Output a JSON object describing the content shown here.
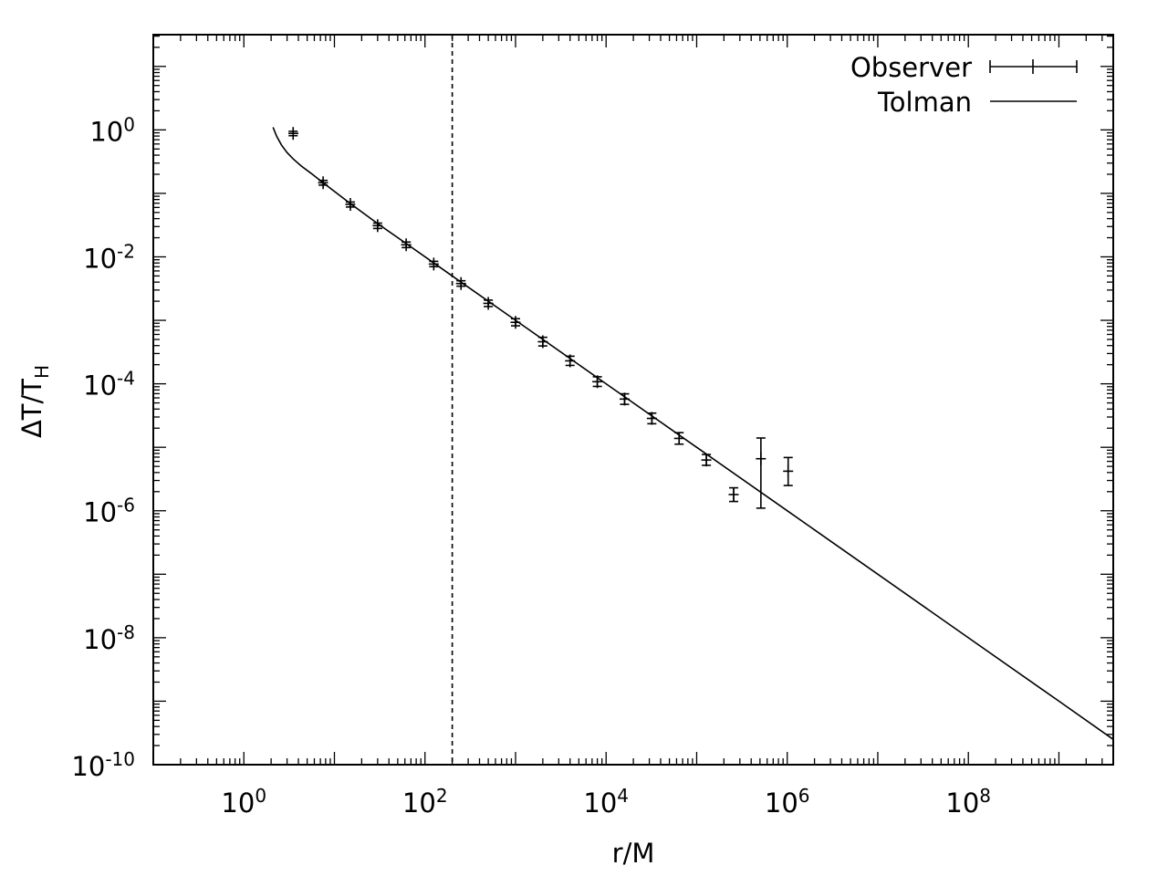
{
  "chart_data": {
    "type": "scatter",
    "title": "",
    "xlabel": "r/M",
    "ylabel": {
      "main": "ΔT/T",
      "sub": "H"
    },
    "xscale": "log",
    "yscale": "log",
    "xlim_log10": [
      -1,
      9.6
    ],
    "ylim_log10": [
      -10,
      1.5
    ],
    "x_ticks": [
      {
        "base": "10",
        "exp": "0",
        "value_log10": 0
      },
      {
        "base": "10",
        "exp": "2",
        "value_log10": 2
      },
      {
        "base": "10",
        "exp": "4",
        "value_log10": 4
      },
      {
        "base": "10",
        "exp": "6",
        "value_log10": 6
      },
      {
        "base": "10",
        "exp": "8",
        "value_log10": 8
      }
    ],
    "y_ticks": [
      {
        "base": "10",
        "exp": "0",
        "value_log10": 0
      },
      {
        "base": "10",
        "exp": "-2",
        "value_log10": -2
      },
      {
        "base": "10",
        "exp": "-4",
        "value_log10": -4
      },
      {
        "base": "10",
        "exp": "-6",
        "value_log10": -6
      },
      {
        "base": "10",
        "exp": "-8",
        "value_log10": -8
      },
      {
        "base": "10",
        "exp": "-10",
        "value_log10": -10
      }
    ],
    "vertical_marker_x": 200,
    "legend_position": "top-right",
    "series": [
      {
        "name": "Observer",
        "style": "errorbars",
        "points": [
          {
            "x": 3.5,
            "y": 0.88,
            "xerr": [
              3.1,
              4.0
            ],
            "yerr": [
              0.81,
              0.95
            ]
          },
          {
            "x": 7.5,
            "y": 0.147,
            "xerr": [
              6.6,
              8.5
            ],
            "yerr": [
              0.135,
              0.16
            ]
          },
          {
            "x": 15,
            "y": 0.067,
            "xerr": [
              13.2,
              17.0
            ],
            "yerr": [
              0.061,
              0.073
            ]
          },
          {
            "x": 30,
            "y": 0.031,
            "xerr": [
              26.4,
              34.0
            ],
            "yerr": [
              0.028,
              0.034
            ]
          },
          {
            "x": 62,
            "y": 0.0155,
            "xerr": [
              54.5,
              70.5
            ],
            "yerr": [
              0.014,
              0.0171
            ]
          },
          {
            "x": 125,
            "y": 0.0077,
            "xerr": [
              110,
              142
            ],
            "yerr": [
              0.007,
              0.0085
            ]
          },
          {
            "x": 250,
            "y": 0.0038,
            "xerr": [
              220,
              284
            ],
            "yerr": [
              0.00345,
              0.0042
            ]
          },
          {
            "x": 500,
            "y": 0.00185,
            "xerr": [
              440,
              568
            ],
            "yerr": [
              0.00165,
              0.00208
            ]
          },
          {
            "x": 1000,
            "y": 0.00093,
            "xerr": [
              880,
              1136
            ],
            "yerr": [
              0.00082,
              0.00106
            ]
          },
          {
            "x": 2000,
            "y": 0.00046,
            "xerr": [
              1760,
              2272
            ],
            "yerr": [
              0.000395,
              0.00054
            ]
          },
          {
            "x": 4000,
            "y": 0.00023,
            "xerr": [
              3520,
              4544
            ],
            "yerr": [
              0.000195,
              0.000272
            ]
          },
          {
            "x": 8000,
            "y": 0.000108,
            "xerr": [
              7040,
              9088
            ],
            "yerr": [
              9.1e-05,
              0.000129
            ]
          },
          {
            "x": 16000,
            "y": 5.75e-05,
            "xerr": [
              14080,
              18176
            ],
            "yerr": [
              4.75e-05,
              6.95e-05
            ]
          },
          {
            "x": 32000,
            "y": 2.85e-05,
            "xerr": [
              28160,
              36352
            ],
            "yerr": [
              2.35e-05,
              3.45e-05
            ]
          },
          {
            "x": 64000,
            "y": 1.38e-05,
            "xerr": [
              56320,
              72704
            ],
            "yerr": [
              1.12e-05,
              1.7e-05
            ]
          },
          {
            "x": 128000,
            "y": 6.3e-06,
            "xerr": [
              112640,
              145408
            ],
            "yerr": [
              5.2e-06,
              7.7e-06
            ]
          },
          {
            "x": 256000,
            "y": 1.8e-06,
            "xerr": [
              225280,
              290816
            ],
            "yerr": [
              1.4e-06,
              2.3e-06
            ]
          },
          {
            "x": 512000,
            "y": 6.6e-06,
            "xerr": [
              450560,
              581632
            ],
            "yerr": [
              1.1e-06,
              1.4e-05
            ]
          },
          {
            "x": 1024000,
            "y": 4.2e-06,
            "xerr": [
              901120,
              1163264
            ],
            "yerr": [
              2.5e-06,
              6.9e-06
            ]
          }
        ]
      },
      {
        "name": "Tolman",
        "style": "line",
        "points": [
          {
            "x": 2.1,
            "y": 1.1
          },
          {
            "x": 2.3,
            "y": 0.8
          },
          {
            "x": 2.6,
            "y": 0.58
          },
          {
            "x": 3.0,
            "y": 0.44
          },
          {
            "x": 3.5,
            "y": 0.35
          },
          {
            "x": 4.3,
            "y": 0.27
          },
          {
            "x": 5.5,
            "y": 0.208
          },
          {
            "x": 7.5,
            "y": 0.147
          },
          {
            "x": 15,
            "y": 0.069
          },
          {
            "x": 30,
            "y": 0.0335
          },
          {
            "x": 62,
            "y": 0.0162
          },
          {
            "x": 125,
            "y": 0.008
          },
          {
            "x": 250,
            "y": 0.004
          },
          {
            "x": 1000,
            "y": 0.001
          },
          {
            "x": 10000,
            "y": 0.0001
          },
          {
            "x": 100000,
            "y": 1e-05
          },
          {
            "x": 1000000,
            "y": 1e-06
          },
          {
            "x": 10000000,
            "y": 1e-07
          },
          {
            "x": 100000000,
            "y": 1e-08
          },
          {
            "x": 1000000000,
            "y": 1e-09
          },
          {
            "x": 3980000000,
            "y": 2.5e-10
          }
        ]
      }
    ]
  }
}
